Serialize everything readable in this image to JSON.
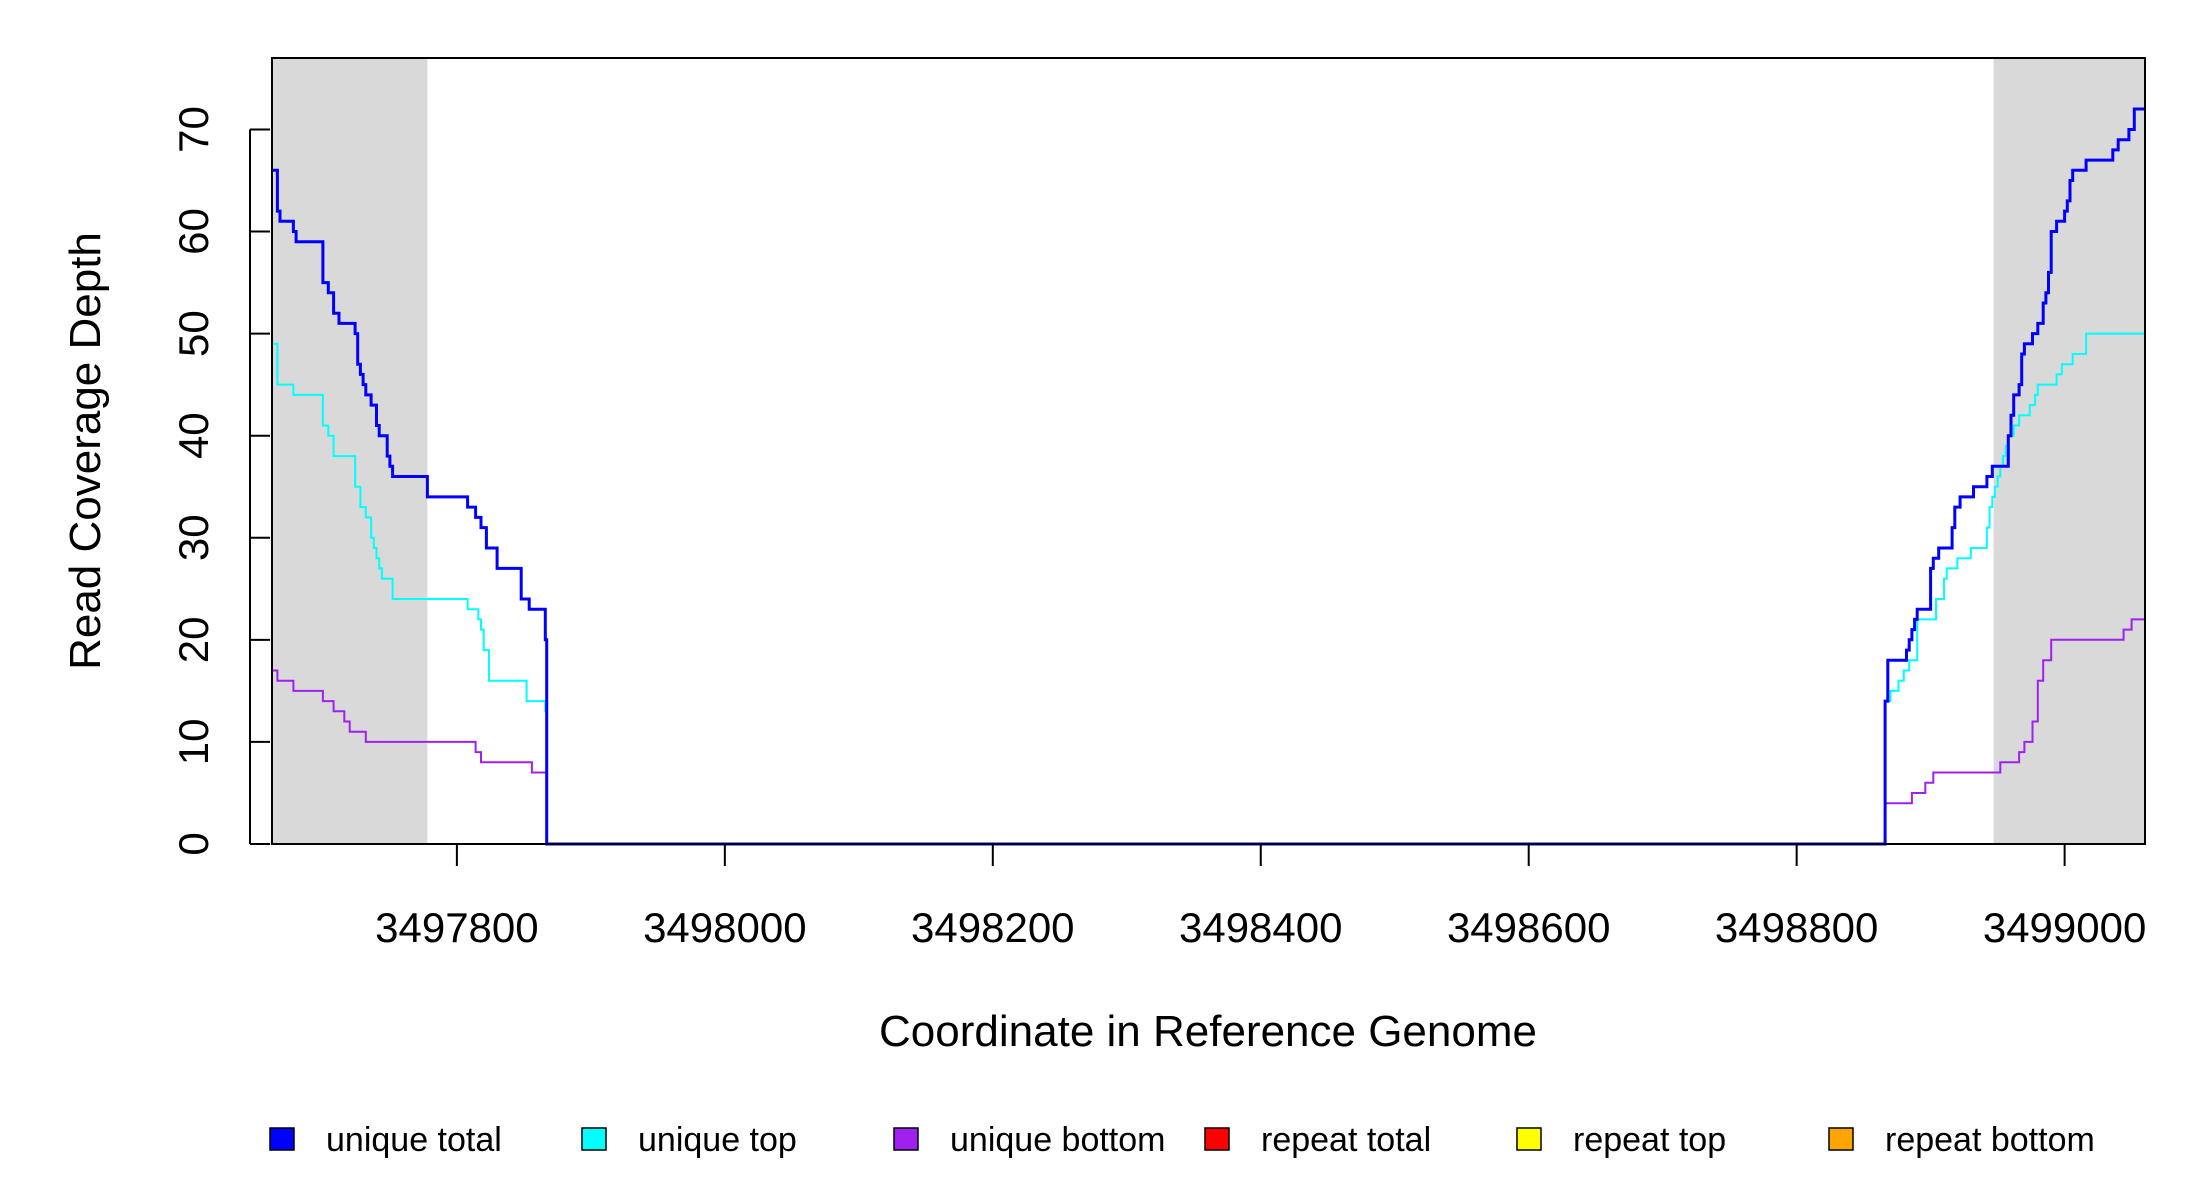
{
  "chart_data": {
    "type": "line",
    "xlabel": "Coordinate in Reference Genome",
    "ylabel": "Read Coverage Depth",
    "xlim": [
      3497662,
      3499060
    ],
    "ylim": [
      0,
      77
    ],
    "x_ticks": [
      3497800,
      3498000,
      3498200,
      3498400,
      3498600,
      3498800,
      3499000
    ],
    "x_tick_labels": [
      "3497800",
      "3498000",
      "3498200",
      "3498400",
      "3498600",
      "3498800",
      "3499000"
    ],
    "y_ticks": [
      0,
      10,
      20,
      30,
      40,
      50,
      60,
      70
    ],
    "y_tick_labels": [
      "0",
      "10",
      "20",
      "30",
      "40",
      "50",
      "60",
      "70"
    ],
    "shaded_regions": [
      [
        3497662,
        3497778
      ],
      [
        3498947,
        3499060
      ]
    ],
    "shade_color": "#d9d9d9",
    "legend_position": "bottom",
    "series": [
      {
        "name": "unique total",
        "color": "#0000ff",
        "x": [
          3497662,
          3497666,
          3497668,
          3497670,
          3497678,
          3497680,
          3497684,
          3497700,
          3497704,
          3497708,
          3497712,
          3497714,
          3497724,
          3497726,
          3497728,
          3497730,
          3497732,
          3497734,
          3497736,
          3497740,
          3497742,
          3497744,
          3497748,
          3497750,
          3497752,
          3497754,
          3497756,
          3497778,
          3497800,
          3497808,
          3497812,
          3497814,
          3497818,
          3497822,
          3497830,
          3497848,
          3497854,
          3497866,
          3497867,
          3498865,
          3498866,
          3498868,
          3498882,
          3498884,
          3498886,
          3498888,
          3498890,
          3498900,
          3498902,
          3498906,
          3498916,
          3498918,
          3498922,
          3498928,
          3498932,
          3498942,
          3498946,
          3498958,
          3498960,
          3498962,
          3498966,
          3498968,
          3498970,
          3498972,
          3498976,
          3498980,
          3498984,
          3498986,
          3498988,
          3498990,
          3498994,
          3499000,
          3499002,
          3499004,
          3499006,
          3499010,
          3499016,
          3499034,
          3499036,
          3499040,
          3499044,
          3499048,
          3499052,
          3499056,
          3499060
        ],
        "y": [
          66,
          62,
          61,
          61,
          60,
          59,
          59,
          55,
          54,
          52,
          51,
          51,
          50,
          47,
          46,
          45,
          44,
          44,
          43,
          41,
          40,
          40,
          38,
          37,
          36,
          36,
          36,
          34,
          34,
          33,
          33,
          32,
          31,
          29,
          27,
          24,
          23,
          20,
          0,
          0,
          14,
          18,
          19,
          20,
          21,
          22,
          23,
          27,
          28,
          29,
          31,
          33,
          34,
          34,
          35,
          36,
          37,
          40,
          42,
          44,
          45,
          48,
          49,
          49,
          50,
          51,
          53,
          54,
          56,
          60,
          61,
          62,
          63,
          65,
          66,
          66,
          67,
          67,
          68,
          69,
          69,
          70,
          72,
          72,
          72
        ]
      },
      {
        "name": "unique top",
        "color": "#00ffff",
        "x": [
          3497662,
          3497666,
          3497678,
          3497700,
          3497704,
          3497708,
          3497724,
          3497728,
          3497732,
          3497736,
          3497738,
          3497740,
          3497742,
          3497744,
          3497748,
          3497750,
          3497752,
          3497778,
          3497800,
          3497808,
          3497812,
          3497816,
          3497818,
          3497820,
          3497824,
          3497848,
          3497852,
          3497866,
          3497867,
          3498865,
          3498866,
          3498870,
          3498876,
          3498880,
          3498884,
          3498890,
          3498900,
          3498904,
          3498910,
          3498912,
          3498916,
          3498920,
          3498930,
          3498940,
          3498942,
          3498944,
          3498946,
          3498948,
          3498950,
          3498952,
          3498954,
          3498956,
          3498958,
          3498962,
          3498966,
          3498974,
          3498978,
          3498980,
          3498982,
          3498986,
          3498994,
          3498998,
          3499002,
          3499006,
          3499010,
          3499014,
          3499016,
          3499020,
          3499030,
          3499040,
          3499044,
          3499050,
          3499056,
          3499060
        ],
        "y": [
          49,
          45,
          44,
          41,
          40,
          38,
          35,
          33,
          32,
          30,
          29,
          28,
          27,
          26,
          26,
          26,
          24,
          24,
          24,
          23,
          23,
          22,
          21,
          19,
          16,
          16,
          14,
          13,
          0,
          0,
          14,
          15,
          16,
          17,
          18,
          22,
          22,
          24,
          26,
          27,
          27,
          28,
          29,
          29,
          31,
          33,
          34,
          35,
          36,
          37,
          38,
          39,
          40,
          41,
          42,
          43,
          44,
          45,
          45,
          45,
          46,
          47,
          47,
          48,
          48,
          48,
          50,
          50,
          50,
          50,
          50,
          50,
          50,
          50
        ]
      },
      {
        "name": "unique bottom",
        "color": "#a020f0",
        "x": [
          3497662,
          3497666,
          3497670,
          3497678,
          3497700,
          3497704,
          3497708,
          3497712,
          3497716,
          3497720,
          3497724,
          3497732,
          3497778,
          3497812,
          3497814,
          3497818,
          3497826,
          3497838,
          3497842,
          3497856,
          3497866,
          3497867,
          3498865,
          3498866,
          3498874,
          3498886,
          3498888,
          3498896,
          3498898,
          3498902,
          3498926,
          3498946,
          3498952,
          3498958,
          3498962,
          3498966,
          3498970,
          3498972,
          3498976,
          3498978,
          3498980,
          3498984,
          3498990,
          3499008,
          3499016,
          3499036,
          3499040,
          3499044,
          3499050,
          3499056,
          3499060
        ],
        "y": [
          17,
          16,
          16,
          15,
          14,
          14,
          13,
          13,
          12,
          11,
          11,
          10,
          10,
          10,
          9,
          8,
          8,
          8,
          8,
          7,
          7,
          0,
          0,
          4,
          4,
          5,
          5,
          6,
          6,
          7,
          7,
          7,
          8,
          8,
          8,
          9,
          10,
          10,
          12,
          12,
          16,
          18,
          20,
          20,
          20,
          20,
          20,
          21,
          22,
          22,
          22
        ]
      },
      {
        "name": "repeat total",
        "color": "#ff0000",
        "x": [
          3497662,
          3499060
        ],
        "y": [
          0,
          0
        ]
      },
      {
        "name": "repeat top",
        "color": "#ffff00",
        "x": [
          3497662,
          3499060
        ],
        "y": [
          0,
          0
        ]
      },
      {
        "name": "repeat bottom",
        "color": "#ffa500",
        "x": [
          3497662,
          3499060
        ],
        "y": [
          0,
          0
        ]
      }
    ]
  }
}
